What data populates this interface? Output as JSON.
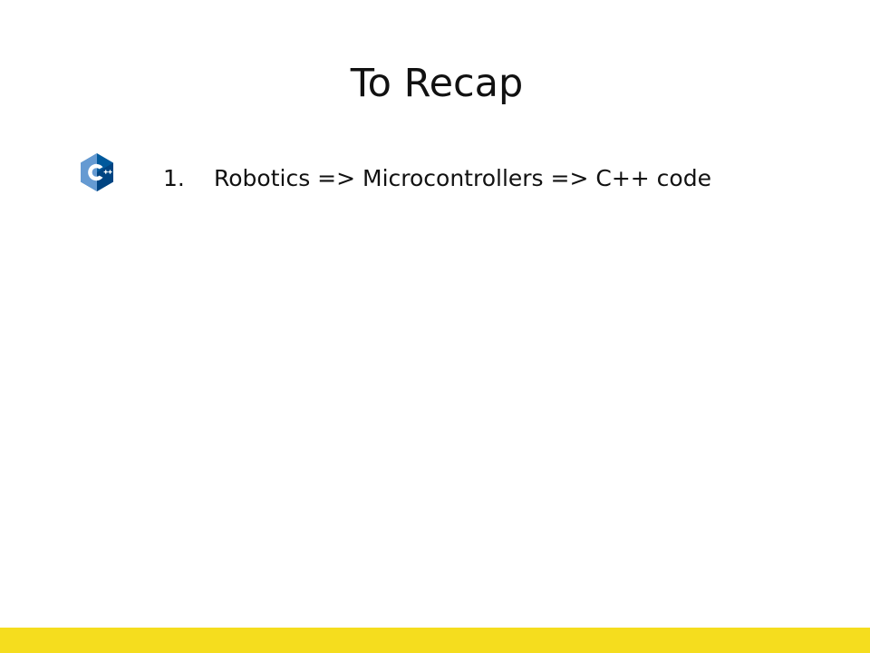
{
  "slide": {
    "title": "To Recap",
    "logo_icon": "cpp-logo-icon",
    "logo_colors": {
      "hex_dark": "#00599C",
      "hex_light": "#659AD2",
      "letter": "#ffffff"
    },
    "items": [
      {
        "number": "1.",
        "text": "Robotics => Microcontrollers => C++ code"
      }
    ],
    "footer_color": "#F5DD1E"
  }
}
